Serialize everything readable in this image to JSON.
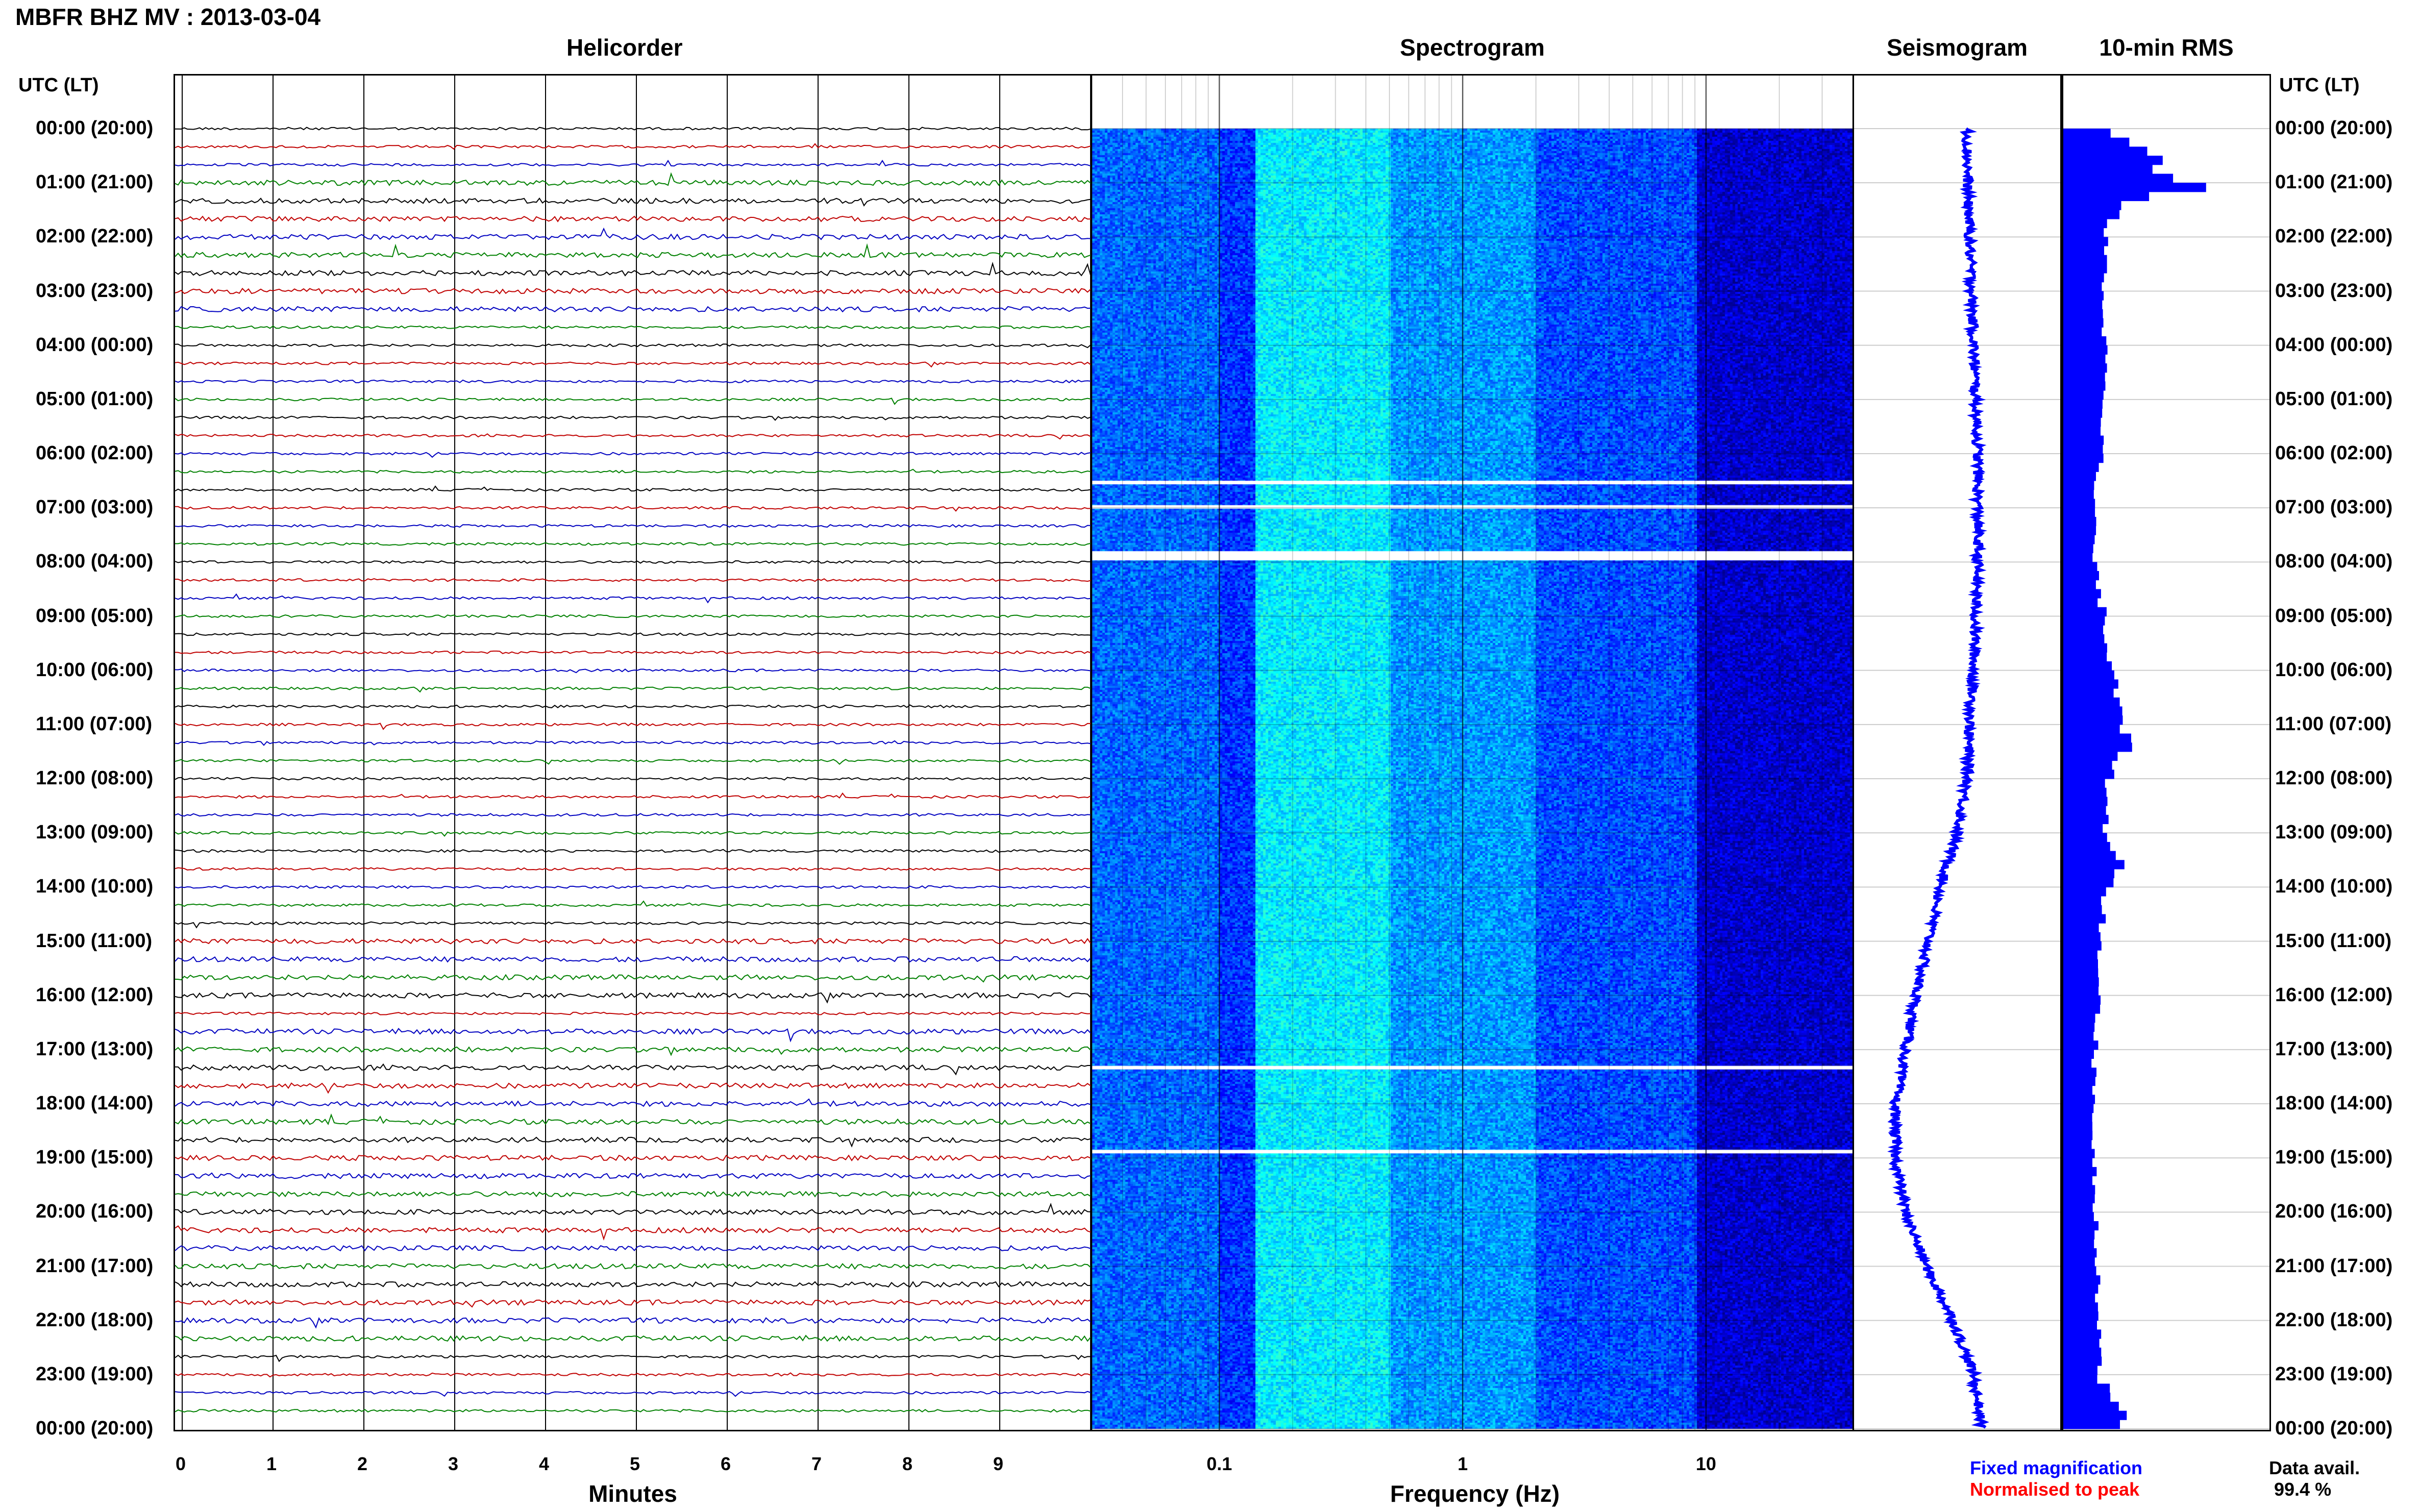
{
  "header": {
    "title": "MBFR BHZ MV : 2013-03-04",
    "tz_label_left": "UTC (LT)",
    "tz_label_right": "UTC (LT)"
  },
  "panels": {
    "helicorder": "Helicorder",
    "spectrogram": "Spectrogram",
    "seismogram": "Seismogram",
    "rms": "10-min RMS"
  },
  "hour_labels": [
    "00:00 (20:00)",
    "01:00 (21:00)",
    "02:00 (22:00)",
    "03:00 (23:00)",
    "04:00 (00:00)",
    "05:00 (01:00)",
    "06:00 (02:00)",
    "07:00 (03:00)",
    "08:00 (04:00)",
    "09:00 (05:00)",
    "10:00 (06:00)",
    "11:00 (07:00)",
    "12:00 (08:00)",
    "13:00 (09:00)",
    "14:00 (10:00)",
    "15:00 (11:00)",
    "16:00 (12:00)",
    "17:00 (13:00)",
    "18:00 (14:00)",
    "19:00 (15:00)",
    "20:00 (16:00)",
    "21:00 (17:00)",
    "22:00 (18:00)",
    "23:00 (19:00)",
    "00:00 (20:00)"
  ],
  "footer": {
    "fixed_magnification": "Fixed magnification",
    "normalised_to_peak": "Normalised to peak",
    "data_avail_label": "Data avail.",
    "data_avail_value": "99.4 %"
  },
  "colors": {
    "trace_cycle": [
      "#000000",
      "#c00000",
      "#0000c0",
      "#008000"
    ],
    "seismogram": "#0000ff",
    "rms": "#0000ff",
    "fixed_magnification": "#0000ff",
    "normalised_to_peak": "#ff0000"
  },
  "chart_data": [
    {
      "type": "line",
      "name": "helicorder",
      "title": "Helicorder",
      "xlabel": "Minutes",
      "x_ticks": [
        0,
        1,
        2,
        3,
        4,
        5,
        6,
        7,
        8,
        9
      ],
      "xlim": [
        0,
        10
      ],
      "rows": 72,
      "minutes_per_row": 10,
      "event_rows": [
        3,
        4,
        5,
        6,
        7,
        8,
        9,
        10,
        45,
        46,
        47,
        48,
        50,
        51,
        52,
        53,
        54,
        55,
        56,
        57,
        58,
        59,
        60,
        61,
        62,
        63,
        64,
        65,
        66,
        67
      ],
      "gap_rows": [
        26,
        33,
        34,
        35,
        36,
        37,
        38,
        39,
        40,
        41,
        42,
        43,
        44
      ]
    },
    {
      "type": "heatmap",
      "name": "spectrogram",
      "title": "Spectrogram",
      "xlabel": "Frequency (Hz)",
      "x_scale": "log",
      "xlim": [
        0.03,
        40
      ],
      "x_ticks": [
        0.1,
        1,
        10
      ],
      "x_tick_labels": [
        "0.1",
        "1",
        "10"
      ],
      "gaps_utc_hours": [
        6.5,
        6.95,
        7.8,
        17.3,
        18.85
      ],
      "colormap": [
        "#000080",
        "#0000ff",
        "#0080ff",
        "#00ffff",
        "#80ff80"
      ]
    },
    {
      "type": "line",
      "name": "seismogram",
      "title": "Seismogram",
      "hours": [
        0,
        1,
        2,
        3,
        4,
        5,
        6,
        7,
        8,
        9,
        10,
        11,
        12,
        13,
        14,
        15,
        16,
        17,
        18,
        19,
        20,
        21,
        22,
        23,
        24
      ],
      "offset": [
        0.55,
        0.55,
        0.56,
        0.57,
        0.58,
        0.59,
        0.6,
        0.6,
        0.6,
        0.59,
        0.58,
        0.56,
        0.55,
        0.5,
        0.42,
        0.36,
        0.3,
        0.25,
        0.2,
        0.2,
        0.25,
        0.35,
        0.48,
        0.58,
        0.62
      ]
    },
    {
      "type": "bar",
      "name": "rms",
      "title": "10-min RMS",
      "hours": [
        0,
        0.25,
        0.5,
        0.75,
        1,
        1.25,
        1.5,
        1.75,
        2,
        2.5,
        3,
        3.5,
        4,
        4.5,
        5,
        5.5,
        6,
        6.5,
        7,
        7.5,
        8,
        9,
        9.5,
        10,
        10.5,
        11,
        11.25,
        11.5,
        12,
        13,
        13.5,
        14,
        15,
        16,
        17,
        18,
        19,
        20,
        21,
        22,
        23,
        23.75,
        24
      ],
      "values": [
        0.25,
        0.35,
        0.45,
        0.48,
        0.7,
        0.3,
        0.25,
        0.2,
        0.2,
        0.2,
        0.2,
        0.2,
        0.2,
        0.22,
        0.2,
        0.2,
        0.18,
        0.15,
        0.15,
        0.15,
        0.15,
        0.2,
        0.22,
        0.25,
        0.28,
        0.3,
        0.38,
        0.28,
        0.2,
        0.2,
        0.28,
        0.2,
        0.18,
        0.18,
        0.15,
        0.15,
        0.15,
        0.16,
        0.16,
        0.18,
        0.18,
        0.3,
        0.25
      ]
    }
  ]
}
